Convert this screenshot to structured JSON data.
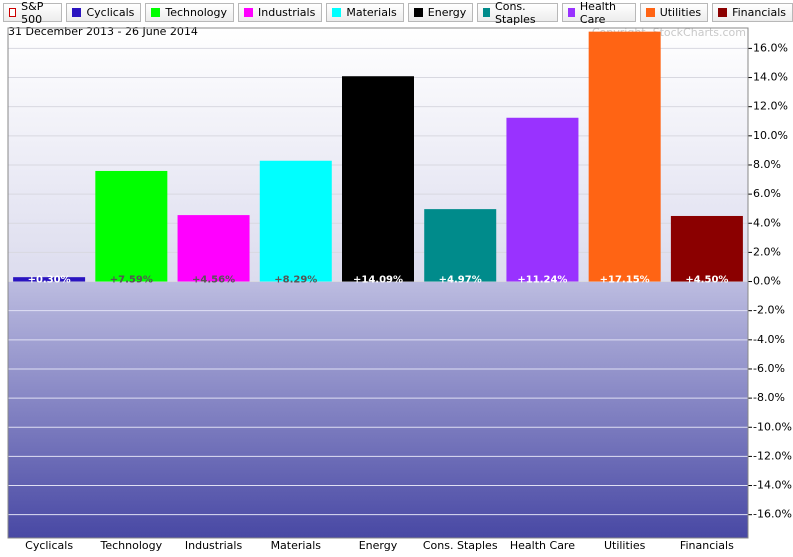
{
  "chart_data": {
    "type": "bar",
    "subtitle": "31 December 2013 - 26 June 2014",
    "annotation": "Copyright, StockCharts.com",
    "legend": [
      {
        "name": "S&P 500",
        "color": "#cc0000"
      },
      {
        "name": "Cyclicals",
        "color": "#2a14c0"
      },
      {
        "name": "Technology",
        "color": "#00ff00"
      },
      {
        "name": "Industrials",
        "color": "#ff00ff"
      },
      {
        "name": "Materials",
        "color": "#00ffff"
      },
      {
        "name": "Energy",
        "color": "#000000"
      },
      {
        "name": "Cons. Staples",
        "color": "#008b8b"
      },
      {
        "name": "Health Care",
        "color": "#9932ff"
      },
      {
        "name": "Utilities",
        "color": "#ff6414"
      },
      {
        "name": "Financials",
        "color": "#8b0000"
      }
    ],
    "categories": [
      "Cyclicals",
      "Technology",
      "Industrials",
      "Materials",
      "Energy",
      "Cons. Staples",
      "Health Care",
      "Utilities",
      "Financials"
    ],
    "values": [
      0.3,
      7.59,
      4.56,
      8.29,
      14.09,
      4.97,
      11.24,
      17.15,
      4.5
    ],
    "value_labels": [
      "+0.30%",
      "+7.59%",
      "+4.56%",
      "+8.29%",
      "+14.09%",
      "+4.97%",
      "+11.24%",
      "+17.15%",
      "+4.50%"
    ],
    "colors": [
      "#2a14c0",
      "#00ff00",
      "#ff00ff",
      "#00ffff",
      "#000000",
      "#008b8b",
      "#9932ff",
      "#ff6414",
      "#8b0000"
    ],
    "label_colors": [
      "#ffffff",
      "#555555",
      "#555555",
      "#555555",
      "#ffffff",
      "#ffffff",
      "#ffffff",
      "#ffffff",
      "#ffffff"
    ],
    "ylim": [
      -17.6,
      17.4
    ],
    "yticks": [
      {
        "value": -16,
        "label": "-16.0%"
      },
      {
        "value": -14,
        "label": "-14.0%"
      },
      {
        "value": -12,
        "label": "-12.0%"
      },
      {
        "value": -10,
        "label": "-10.0%"
      },
      {
        "value": -8,
        "label": "-8.0%"
      },
      {
        "value": -6,
        "label": "-6.0%"
      },
      {
        "value": -4,
        "label": "-4.0%"
      },
      {
        "value": -2,
        "label": "-2.0%"
      },
      {
        "value": 0,
        "label": "0.0%"
      },
      {
        "value": 2,
        "label": "2.0%"
      },
      {
        "value": 4,
        "label": "4.0%"
      },
      {
        "value": 6,
        "label": "6.0%"
      },
      {
        "value": 8,
        "label": "8.0%"
      },
      {
        "value": 10,
        "label": "10.0%"
      },
      {
        "value": 12,
        "label": "12.0%"
      },
      {
        "value": 14,
        "label": "14.0%"
      },
      {
        "value": 16,
        "label": "16.0%"
      }
    ],
    "grid": true,
    "y_axis_side": "right"
  }
}
